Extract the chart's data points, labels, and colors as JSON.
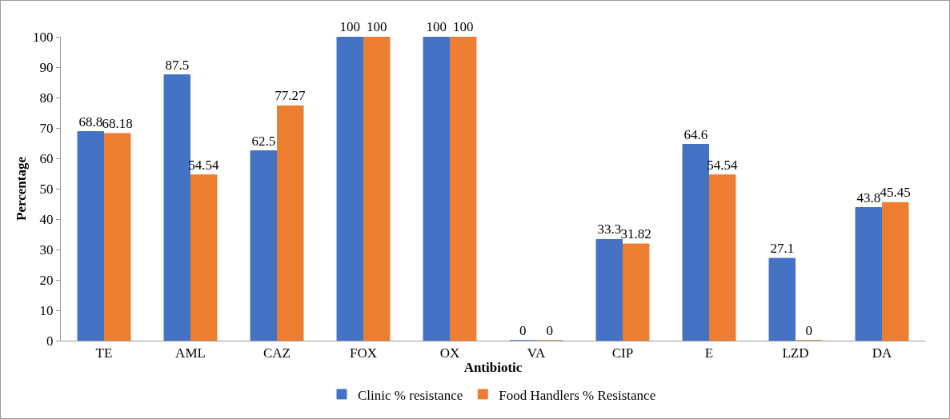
{
  "chart_data": {
    "type": "bar",
    "xlabel": "Antibiotic",
    "ylabel": "Percentage",
    "categories": [
      "TE",
      "AML",
      "CAZ",
      "FOX",
      "OX",
      "VA",
      "CIP",
      "E",
      "LZD",
      "DA"
    ],
    "series": [
      {
        "name": "Clinic % resistance",
        "color": "#4472c4",
        "values": [
          68.8,
          87.5,
          62.5,
          100,
          100,
          0,
          33.3,
          64.6,
          27.1,
          43.8
        ]
      },
      {
        "name": "Food Handlers % Resistance",
        "color": "#ed7d31",
        "values": [
          68.18,
          54.54,
          77.27,
          100,
          100,
          0,
          31.82,
          54.54,
          0,
          45.45
        ]
      }
    ],
    "ylim": [
      0,
      100
    ],
    "yticks": [
      0,
      10,
      20,
      30,
      40,
      50,
      60,
      70,
      80,
      90,
      100
    ],
    "grid": false,
    "legend": "bottom",
    "data_labels": true
  }
}
